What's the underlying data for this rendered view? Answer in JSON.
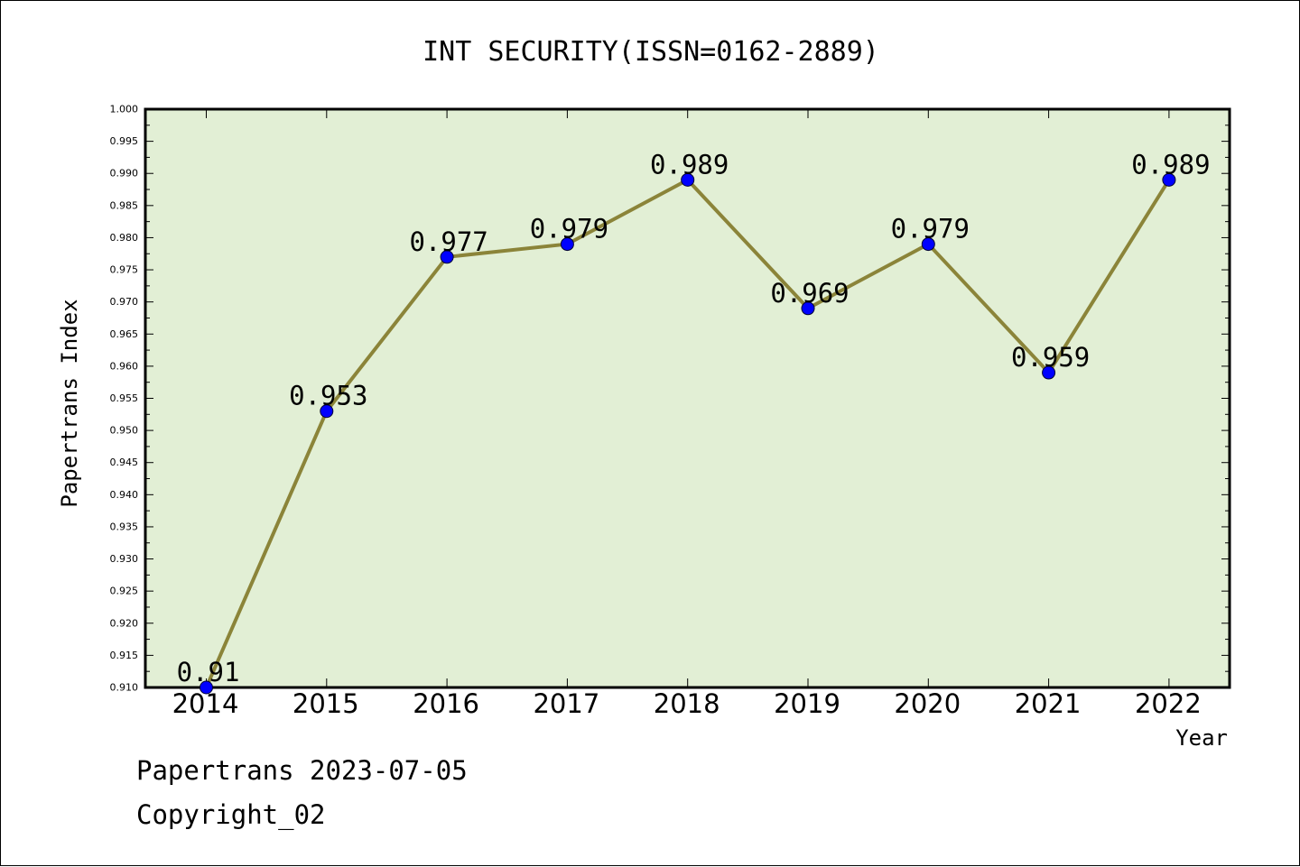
{
  "chart_data": {
    "type": "line",
    "title": "INT SECURITY(ISSN=0162-2889)",
    "xlabel": "Year",
    "ylabel": "Papertrans Index",
    "categories": [
      "2014",
      "2015",
      "2016",
      "2017",
      "2018",
      "2019",
      "2020",
      "2021",
      "2022"
    ],
    "values": [
      0.91,
      0.953,
      0.977,
      0.979,
      0.989,
      0.969,
      0.979,
      0.959,
      0.989
    ],
    "data_labels": [
      "0.91",
      "0.953",
      "0.977",
      "0.979",
      "0.989",
      "0.969",
      "0.979",
      "0.959",
      "0.989"
    ],
    "ylim": [
      0.91,
      1.0
    ],
    "y_ticks": [
      "0.910",
      "0.915",
      "0.920",
      "0.925",
      "0.930",
      "0.935",
      "0.940",
      "0.945",
      "0.950",
      "0.955",
      "0.960",
      "0.965",
      "0.970",
      "0.975",
      "0.980",
      "0.985",
      "0.990",
      "0.995",
      "1.000"
    ],
    "grid": false,
    "legend": "none",
    "colors": {
      "plot_background": "#e2efd5",
      "line": "#8b8439",
      "marker": "#0000ff"
    }
  },
  "footer": {
    "line1": "Papertrans 2023-07-05",
    "line2": "Copyright_02"
  }
}
